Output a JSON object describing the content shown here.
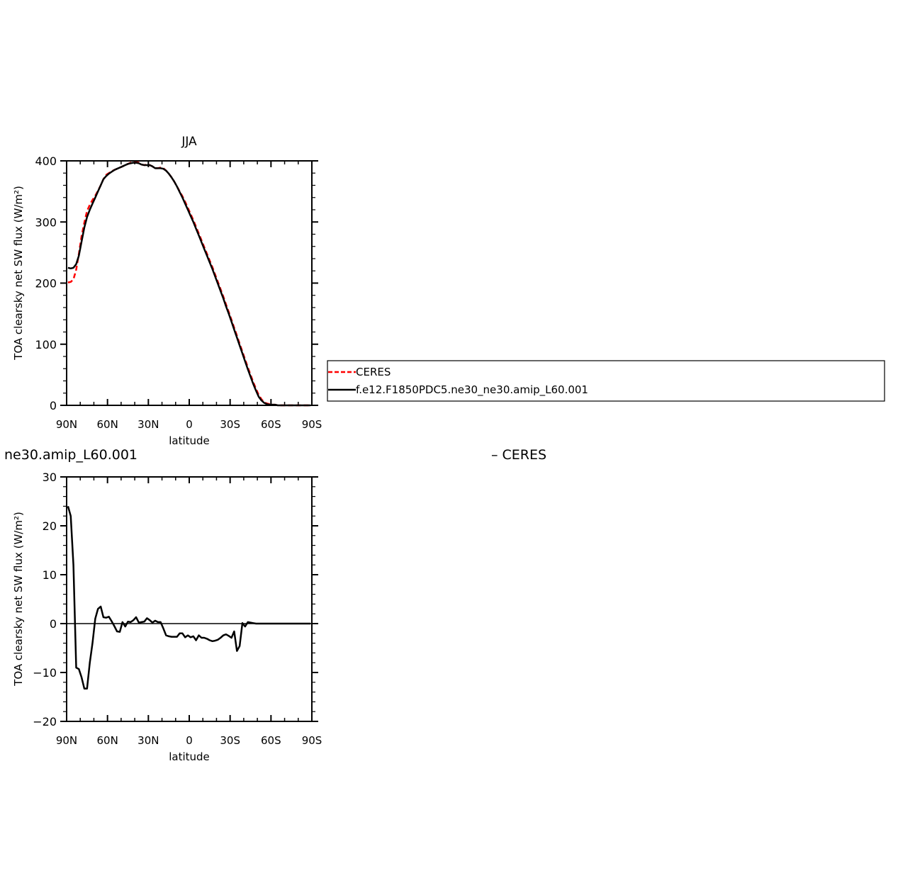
{
  "chart_data": [
    {
      "type": "line",
      "title": "JJA",
      "xlabel": "latitude",
      "ylabel": "TOA clearsky net SW flux (W/m²)",
      "xlim": [
        90,
        -90
      ],
      "ylim": [
        0,
        400
      ],
      "xticks": [
        90,
        60,
        30,
        0,
        -30,
        -60,
        -90
      ],
      "xtick_labels": [
        "90N",
        "60N",
        "30N",
        "0",
        "30S",
        "60S",
        "90S"
      ],
      "yticks": [
        0,
        100,
        200,
        300,
        400
      ],
      "ytick_labels": [
        "0",
        "100",
        "200",
        "300",
        "400"
      ],
      "grid": false,
      "legend": "right, outside plot",
      "series": [
        {
          "name": "CERES",
          "color": "#ff0000",
          "style": "dashed",
          "x": [
            89,
            87,
            85,
            83,
            81,
            79,
            77,
            75,
            73,
            71,
            69,
            67,
            65,
            63,
            61,
            59,
            57,
            55,
            53,
            51,
            49,
            47,
            45,
            43,
            41,
            39,
            37,
            35,
            33,
            31,
            29,
            27,
            25,
            23,
            21,
            19,
            17,
            15,
            13,
            11,
            9,
            7,
            5,
            3,
            1,
            -1,
            -3,
            -5,
            -7,
            -9,
            -11,
            -13,
            -15,
            -17,
            -19,
            -21,
            -23,
            -25,
            -27,
            -29,
            -31,
            -33,
            -35,
            -37,
            -39,
            -41,
            -43,
            -45,
            -47,
            -49,
            -51,
            -53,
            -55,
            -57,
            -59,
            -61,
            -63,
            -65,
            -67,
            -69,
            -71,
            -73,
            -75,
            -77,
            -79,
            -81,
            -83,
            -85,
            -87,
            -89
          ],
          "y": [
            201,
            202,
            206,
            222,
            248,
            277,
            299,
            318,
            328,
            336,
            343,
            351,
            360,
            370,
            377,
            380,
            383,
            385,
            387,
            389,
            391,
            393,
            395,
            397,
            398,
            398,
            397,
            394,
            393,
            394,
            393,
            391,
            388,
            388,
            389,
            388,
            384,
            379,
            373,
            366,
            358,
            350,
            342,
            333,
            323,
            313,
            303,
            292,
            281,
            270,
            259,
            248,
            237,
            226,
            214,
            202,
            190,
            178,
            165,
            153,
            140,
            127,
            114,
            101,
            88,
            75,
            62,
            50,
            38,
            27,
            17,
            10,
            5,
            3,
            2,
            1,
            1,
            0,
            0,
            0,
            0,
            0,
            0,
            0,
            0,
            0,
            0,
            0,
            0,
            0
          ]
        },
        {
          "name": "f.e12.F1850PDC5.ne30_ne30.amip_L60.001",
          "color": "#000000",
          "style": "solid",
          "x": [
            89,
            87,
            85,
            83,
            81,
            79,
            77,
            75,
            73,
            71,
            69,
            67,
            65,
            63,
            61,
            59,
            57,
            55,
            53,
            51,
            49,
            47,
            45,
            43,
            41,
            39,
            37,
            35,
            33,
            31,
            29,
            27,
            25,
            23,
            21,
            19,
            17,
            15,
            13,
            11,
            9,
            7,
            5,
            3,
            1,
            -1,
            -3,
            -5,
            -7,
            -9,
            -11,
            -13,
            -15,
            -17,
            -19,
            -21,
            -23,
            -25,
            -27,
            -29,
            -31,
            -33,
            -35,
            -37,
            -39,
            -41,
            -43,
            -45,
            -47,
            -49,
            -51,
            -53,
            -55,
            -57,
            -59,
            -61,
            -63,
            -65,
            -67,
            -69,
            -71,
            -73,
            -75,
            -77,
            -79,
            -81,
            -83,
            -85,
            -87,
            -89
          ],
          "y": [
            225,
            224,
            225,
            231,
            245,
            268,
            291,
            308,
            320,
            330,
            340,
            350,
            360,
            370,
            375,
            379,
            382,
            385,
            387,
            389,
            391,
            393,
            395,
            396,
            397,
            397,
            396,
            394,
            393,
            393,
            393,
            391,
            388,
            388,
            388,
            387,
            384,
            379,
            373,
            366,
            358,
            349,
            340,
            330,
            320,
            310,
            300,
            289,
            278,
            267,
            256,
            245,
            234,
            223,
            211,
            199,
            187,
            175,
            162,
            150,
            137,
            124,
            111,
            98,
            85,
            72,
            59,
            47,
            35,
            24,
            14,
            8,
            4,
            2,
            1,
            1,
            1,
            0,
            0,
            0,
            0,
            0,
            0,
            0,
            0,
            0,
            0,
            0,
            0,
            0
          ]
        }
      ]
    },
    {
      "type": "line",
      "title": "ne30.amip_L60.001",
      "title_right": "– CERES",
      "xlabel": "latitude",
      "ylabel": "TOA clearsky net SW flux (W/m²)",
      "xlim": [
        90,
        -90
      ],
      "ylim": [
        -20,
        30
      ],
      "xticks": [
        90,
        60,
        30,
        0,
        -30,
        -60,
        -90
      ],
      "xtick_labels": [
        "90N",
        "60N",
        "30N",
        "0",
        "30S",
        "60S",
        "90S"
      ],
      "yticks": [
        -20,
        -10,
        0,
        10,
        20,
        30
      ],
      "ytick_labels": [
        "−20",
        "−10",
        "0",
        "10",
        "20",
        "30"
      ],
      "grid": false,
      "series": [
        {
          "color": "#000000",
          "style": "solid",
          "x": [
            89,
            87,
            85,
            83,
            81,
            79,
            77,
            75,
            73,
            71,
            69,
            67,
            65,
            63,
            61,
            59,
            57,
            55,
            53,
            51,
            49,
            47,
            45,
            43,
            41,
            39,
            37,
            35,
            33,
            31,
            29,
            27,
            25,
            23,
            21,
            19,
            17,
            15,
            13,
            11,
            9,
            7,
            5,
            3,
            1,
            -1,
            -3,
            -5,
            -7,
            -9,
            -11,
            -13,
            -15,
            -17,
            -19,
            -21,
            -23,
            -25,
            -27,
            -29,
            -31,
            -33,
            -35,
            -37,
            -39,
            -41,
            -43,
            -45,
            -47,
            -49,
            -51,
            -53,
            -55,
            -57,
            -59,
            -61,
            -63,
            -65,
            -67,
            -69,
            -71,
            -73,
            -75,
            -77,
            -79,
            -81,
            -83,
            -85,
            -87,
            -89
          ],
          "y": [
            24,
            22,
            12,
            -9,
            -9.3,
            -11,
            -13.3,
            -13.3,
            -8,
            -4,
            1,
            3,
            3.5,
            1.3,
            1.2,
            1.4,
            0.5,
            -0.5,
            -1.6,
            -1.7,
            0.3,
            -0.6,
            0.4,
            0.3,
            0.7,
            1.3,
            0.2,
            0.3,
            0.4,
            1.1,
            0.7,
            0.2,
            0.6,
            0.3,
            0.3,
            -1,
            -2.4,
            -2.6,
            -2.7,
            -2.7,
            -2.7,
            -2,
            -2,
            -2.8,
            -2.4,
            -2.8,
            -2.6,
            -3.4,
            -2.4,
            -2.9,
            -2.9,
            -3.1,
            -3.4,
            -3.6,
            -3.5,
            -3.3,
            -2.9,
            -2.4,
            -2.2,
            -2.5,
            -2.9,
            -1.6,
            -5.6,
            -4.6,
            0.1,
            -0.6,
            0.3,
            0.2,
            0.1,
            0,
            0,
            0,
            0,
            0,
            0,
            0,
            0,
            0,
            0,
            0,
            0,
            0,
            0,
            0,
            0,
            0,
            0,
            0,
            0,
            0
          ]
        }
      ]
    }
  ]
}
